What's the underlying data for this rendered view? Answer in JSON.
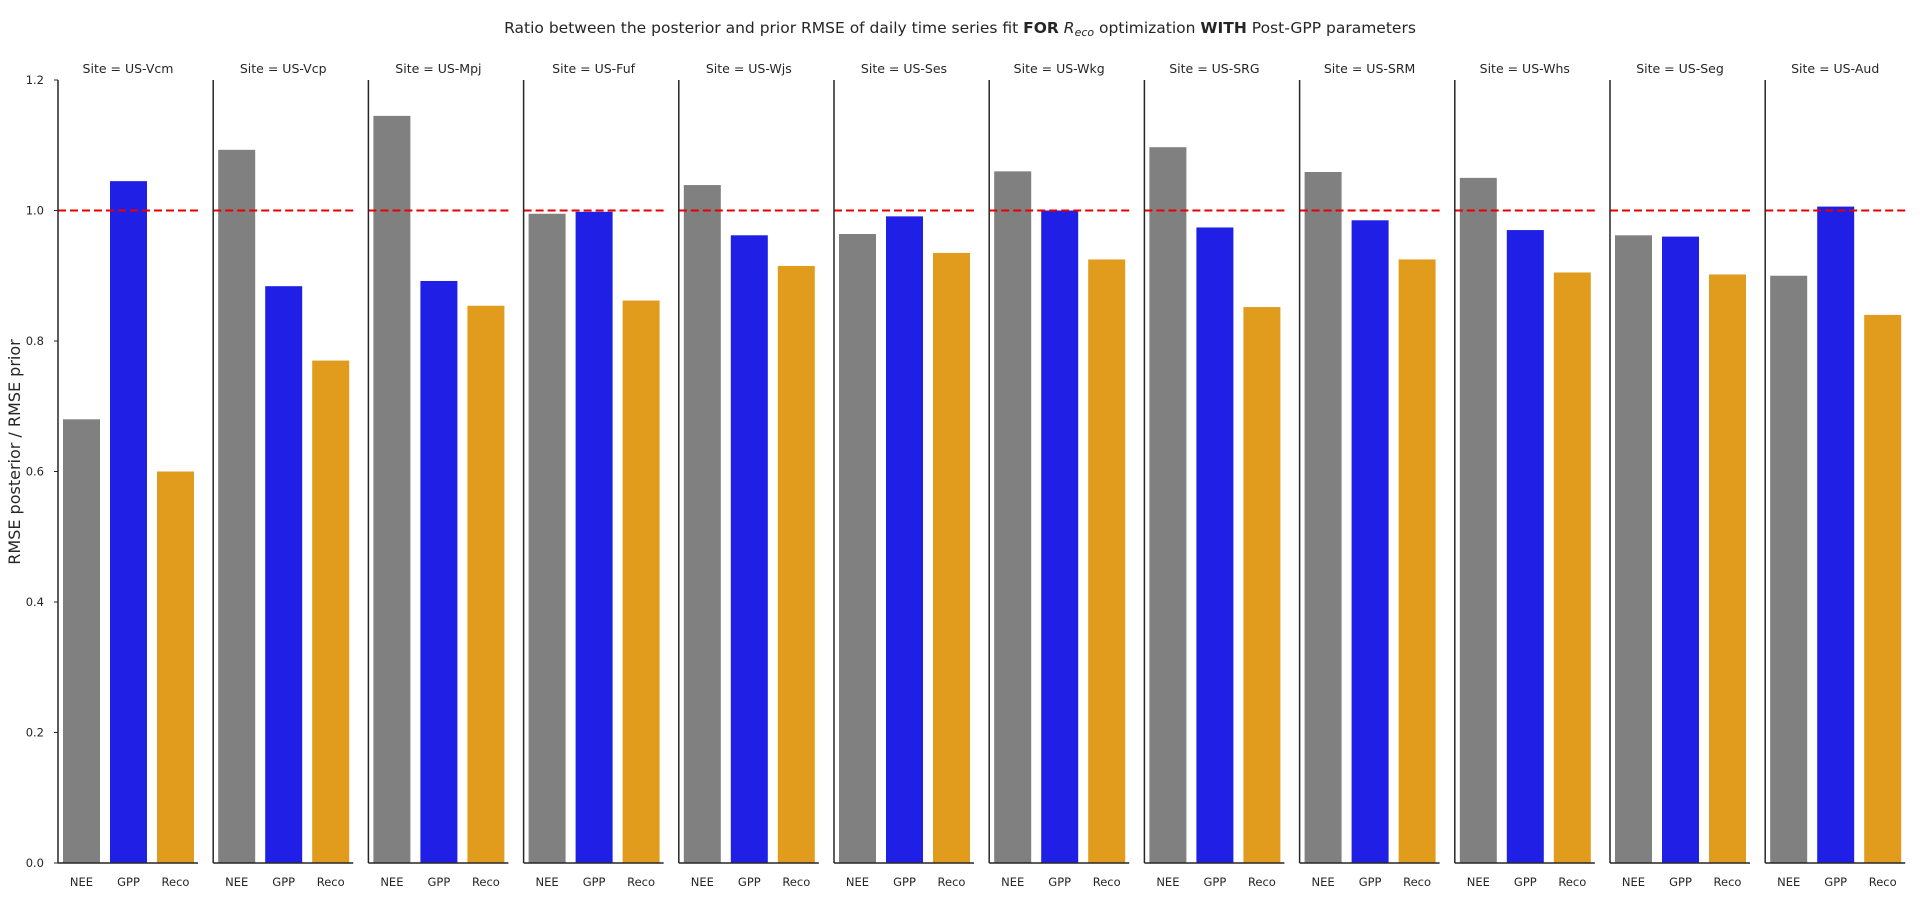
{
  "chart_data": {
    "type": "bar",
    "title": {
      "part1": "Ratio between the posterior and prior RMSE of daily time series fit ",
      "part2": "FOR",
      "part3_main": "R",
      "part3_sub": "eco",
      "part4": " optimization ",
      "part5": "WITH",
      "part6": " Post-GPP parameters"
    },
    "ylabel": "RMSE posterior / RMSE prior",
    "ylim": [
      0,
      1.2
    ],
    "yticks": [
      "0.0",
      "0.2",
      "0.4",
      "0.6",
      "0.8",
      "1.0",
      "1.2"
    ],
    "reference_line": 1.0,
    "categories": [
      "NEE",
      "GPP",
      "Reco"
    ],
    "category_colors": {
      "NEE": "#808080",
      "GPP": "#1f1fe6",
      "Reco": "#e19c1e"
    },
    "reference_line_color": "#e60000",
    "facets": [
      {
        "title": "Site = US-Vcm",
        "values": [
          0.68,
          1.045,
          0.6
        ]
      },
      {
        "title": "Site = US-Vcp",
        "values": [
          1.093,
          0.884,
          0.77
        ]
      },
      {
        "title": "Site = US-Mpj",
        "values": [
          1.145,
          0.892,
          0.854
        ]
      },
      {
        "title": "Site = US-Fuf",
        "values": [
          0.995,
          0.998,
          0.862
        ]
      },
      {
        "title": "Site = US-Wjs",
        "values": [
          1.039,
          0.962,
          0.915
        ]
      },
      {
        "title": "Site = US-Ses",
        "values": [
          0.964,
          0.991,
          0.935
        ]
      },
      {
        "title": "Site = US-Wkg",
        "values": [
          1.06,
          1.0,
          0.925
        ]
      },
      {
        "title": "Site = US-SRG",
        "values": [
          1.097,
          0.974,
          0.852
        ]
      },
      {
        "title": "Site = US-SRM",
        "values": [
          1.059,
          0.985,
          0.925
        ]
      },
      {
        "title": "Site = US-Whs",
        "values": [
          1.05,
          0.97,
          0.905
        ]
      },
      {
        "title": "Site = US-Seg",
        "values": [
          0.962,
          0.96,
          0.902
        ]
      },
      {
        "title": "Site = US-Aud",
        "values": [
          0.9,
          1.006,
          0.84
        ]
      }
    ]
  }
}
